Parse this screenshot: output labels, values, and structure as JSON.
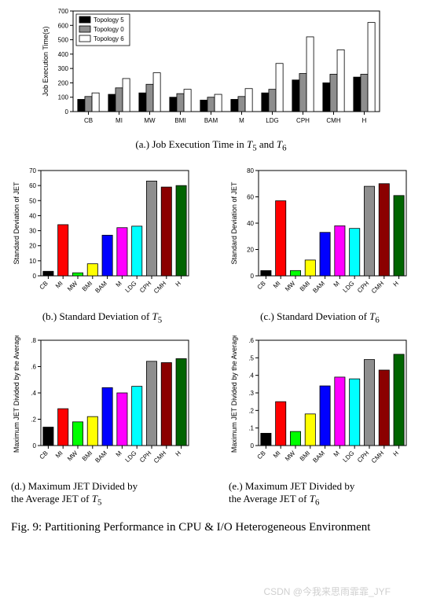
{
  "chart_a": {
    "type": "bar",
    "ylabel": "Job Execution Time(s)",
    "categories": [
      "CB",
      "MI",
      "MW",
      "BMI",
      "BAM",
      "M",
      "LDG",
      "CPH",
      "CMH",
      "H"
    ],
    "series": [
      {
        "name": "Topology 5",
        "fill": "#000000",
        "values": [
          85,
          120,
          130,
          100,
          80,
          85,
          130,
          220,
          200,
          240
        ]
      },
      {
        "name": "Topology 0",
        "fill": "#8e8e8e",
        "values": [
          105,
          165,
          190,
          125,
          100,
          105,
          155,
          265,
          260,
          260
        ]
      },
      {
        "name": "Topology 6",
        "fill": "#ffffff",
        "values": [
          130,
          230,
          270,
          155,
          120,
          160,
          335,
          520,
          430,
          620
        ]
      }
    ],
    "ylim": [
      0,
      700
    ],
    "ytick_step": 100,
    "grid": false,
    "bar_border": "#000000",
    "background_color": "#ffffff",
    "legend_pos": "top-left",
    "label_fontsize": 9,
    "tick_fontsize": 8
  },
  "chart_b": {
    "type": "bar",
    "ylabel": "Standard Deviation of JET",
    "categories": [
      "CB",
      "MI",
      "MW",
      "BMI",
      "BAM",
      "M",
      "LDG",
      "CPH",
      "CMH",
      "H"
    ],
    "values": [
      3,
      34,
      2,
      8,
      27,
      32,
      33,
      63,
      59,
      60
    ],
    "bar_colors": [
      "#000000",
      "#ff0000",
      "#00ff00",
      "#ffff00",
      "#0000ff",
      "#ff00ff",
      "#00ffff",
      "#8e8e8e",
      "#8b0000",
      "#006400"
    ],
    "ylim": [
      0,
      70
    ],
    "ytick_step": 10,
    "background_color": "#ffffff",
    "label_fontsize": 9,
    "tick_fontsize": 8,
    "bar_border": "#000000"
  },
  "chart_c": {
    "type": "bar",
    "ylabel": "Standard Deviation of JET",
    "categories": [
      "CB",
      "MI",
      "MW",
      "BMI",
      "BAM",
      "M",
      "LDG",
      "CPH",
      "CMH",
      "H"
    ],
    "values": [
      4,
      57,
      4,
      12,
      33,
      38,
      36,
      68,
      70,
      61
    ],
    "bar_colors": [
      "#000000",
      "#ff0000",
      "#00ff00",
      "#ffff00",
      "#0000ff",
      "#ff00ff",
      "#00ffff",
      "#8e8e8e",
      "#8b0000",
      "#006400"
    ],
    "ylim": [
      0,
      80
    ],
    "ytick_step": 20,
    "background_color": "#ffffff",
    "label_fontsize": 9,
    "tick_fontsize": 8,
    "bar_border": "#000000"
  },
  "chart_d": {
    "type": "bar",
    "ylabel": "Maximum JET Divided by the Average",
    "categories": [
      "CB",
      "MI",
      "MW",
      "BMI",
      "BAM",
      "M",
      "LDG",
      "CPH",
      "CMH",
      "H"
    ],
    "values": [
      0.14,
      0.28,
      0.18,
      0.22,
      0.44,
      0.4,
      0.45,
      0.64,
      0.63,
      0.66
    ],
    "bar_colors": [
      "#000000",
      "#ff0000",
      "#00ff00",
      "#ffff00",
      "#0000ff",
      "#ff00ff",
      "#00ffff",
      "#8e8e8e",
      "#8b0000",
      "#006400"
    ],
    "ylim": [
      0,
      0.8
    ],
    "ytick_step": 0.2,
    "ytick_labels": [
      "0",
      ".2",
      ".4",
      ".6",
      ".8"
    ],
    "background_color": "#ffffff",
    "label_fontsize": 9,
    "tick_fontsize": 8,
    "bar_border": "#000000"
  },
  "chart_e": {
    "type": "bar",
    "ylabel": "Maximum JET Divided by the Average",
    "categories": [
      "CB",
      "MI",
      "MW",
      "BMI",
      "BAM",
      "M",
      "LDG",
      "CPH",
      "CMH",
      "H"
    ],
    "values": [
      0.07,
      0.25,
      0.08,
      0.18,
      0.34,
      0.39,
      0.38,
      0.49,
      0.43,
      0.52
    ],
    "bar_colors": [
      "#000000",
      "#ff0000",
      "#00ff00",
      "#ffff00",
      "#0000ff",
      "#ff00ff",
      "#00ffff",
      "#8e8e8e",
      "#8b0000",
      "#006400"
    ],
    "ylim": [
      0,
      0.6
    ],
    "ytick_step": 0.1,
    "ytick_labels": [
      "0",
      ".1",
      ".2",
      ".3",
      ".4",
      ".5",
      ".6"
    ],
    "background_color": "#ffffff",
    "label_fontsize": 9,
    "tick_fontsize": 8,
    "bar_border": "#000000"
  },
  "captions": {
    "a": "(a.) Job Execution Time in ",
    "a_t5": "T",
    "a_sub5": "5",
    "a_and": " and ",
    "a_t6": "T",
    "a_sub6": "6",
    "b": "(b.) Standard Deviation of ",
    "b_t": "T",
    "b_sub": "5",
    "c": "(c.) Standard Deviation of ",
    "c_t": "T",
    "c_sub": "6",
    "d1": "(d.) Maximum JET Divided by",
    "d2": "the Average JET of ",
    "d_t": "T",
    "d_sub": "5",
    "e1": "(e.) Maximum JET Divided by",
    "e2": "the Average JET of ",
    "e_t": "T",
    "e_sub": "6",
    "fig": "Fig. 9: Partitioning Performance in CPU & I/O Heterogeneous Environment"
  },
  "watermark": "CSDN @今我来思雨霏霏_JYF"
}
